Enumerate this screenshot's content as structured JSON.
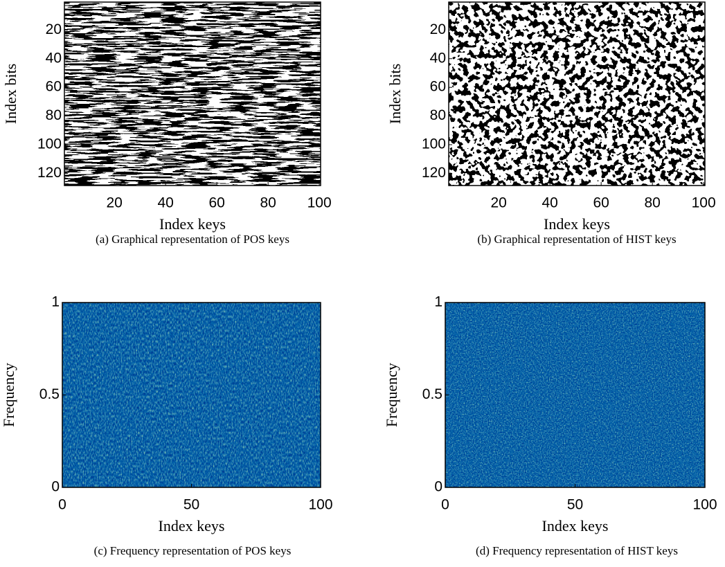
{
  "chart_data": [
    {
      "type": "image",
      "colormap": "gray",
      "caption": "(a)  Graphical representation of POS keys",
      "xlabel": "Index keys",
      "ylabel": "Index bits",
      "xlim": [
        0.5,
        100.5
      ],
      "ylim": [
        128.5,
        0.5
      ],
      "xticks": [
        20,
        40,
        60,
        80,
        100
      ],
      "yticks": [
        20,
        40,
        60,
        80,
        100,
        120
      ]
    },
    {
      "type": "image",
      "colormap": "gray",
      "caption": "(b)  Graphical representation of HIST keys",
      "xlabel": "Index keys",
      "ylabel": "Index bits",
      "xlim": [
        0.5,
        100.5
      ],
      "ylim": [
        128.5,
        0.5
      ],
      "xticks": [
        20,
        40,
        60,
        80,
        100
      ],
      "yticks": [
        20,
        40,
        60,
        80,
        100,
        120
      ]
    },
    {
      "type": "image",
      "colormap": "jet",
      "caption": "(c)  Frequency representation of POS keys",
      "xlabel": "Index keys",
      "ylabel": "Frequency",
      "xlim": [
        0,
        100
      ],
      "ylim": [
        0,
        1
      ],
      "xticks": [
        0,
        50,
        100
      ],
      "yticks": [
        0,
        0.5,
        1
      ]
    },
    {
      "type": "image",
      "colormap": "jet",
      "caption": "(d)  Frequency representation of HIST keys",
      "xlabel": "Index keys",
      "ylabel": "Frequency",
      "xlim": [
        0,
        100
      ],
      "ylim": [
        0,
        1
      ],
      "xticks": [
        0,
        50,
        100
      ],
      "yticks": [
        0,
        0.5,
        1
      ]
    }
  ]
}
